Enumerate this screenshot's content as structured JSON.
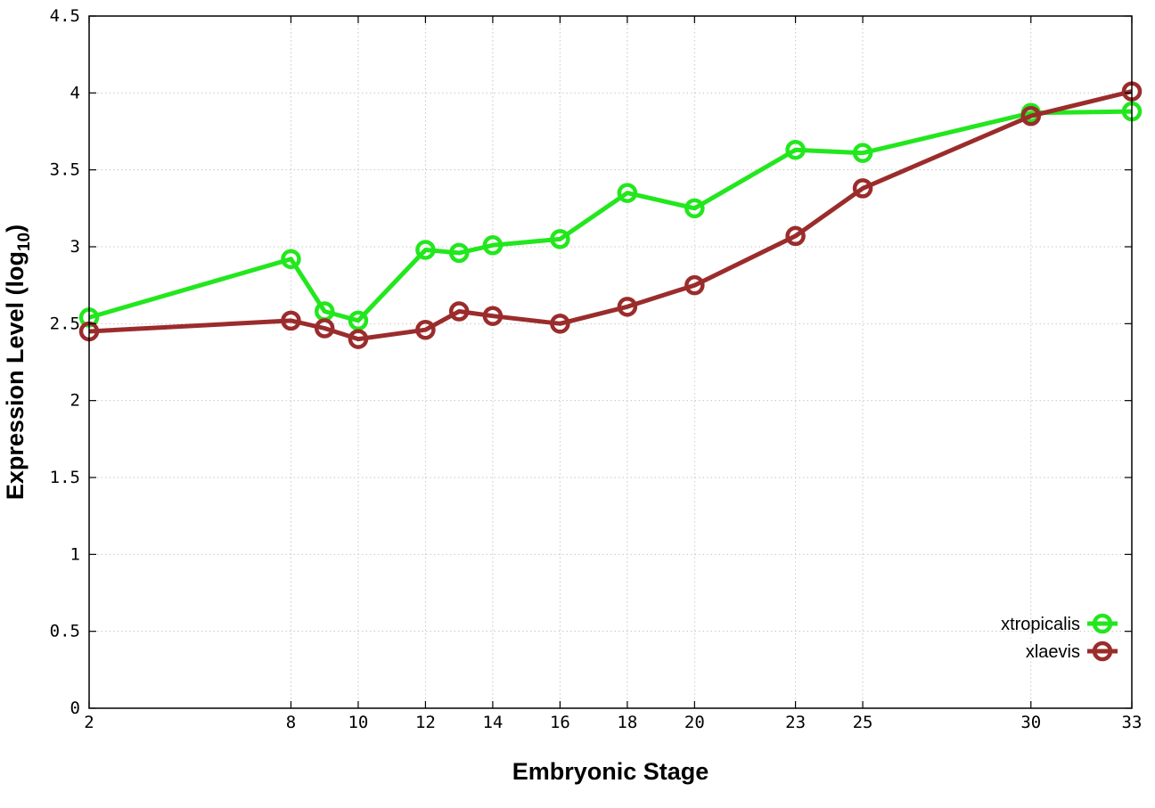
{
  "chart_data": {
    "type": "line",
    "title": "",
    "xlabel": "Embryonic Stage",
    "ylabel_main": "Expression Level (log",
    "ylabel_sub": "10",
    "ylabel_close": ")",
    "x": [
      2,
      8,
      9,
      10,
      12,
      13,
      14,
      16,
      18,
      20,
      23,
      25,
      30,
      33
    ],
    "x_ticks": [
      2,
      8,
      10,
      12,
      14,
      16,
      18,
      20,
      23,
      25,
      30,
      33
    ],
    "x_tick_labels": [
      "2",
      "8",
      "10",
      "12",
      "14",
      "16",
      "18",
      "20",
      "23",
      "25",
      "30",
      "33"
    ],
    "xlim": [
      2,
      33
    ],
    "ylim": [
      0,
      4.5
    ],
    "y_ticks": [
      0,
      0.5,
      1,
      1.5,
      2,
      2.5,
      3,
      3.5,
      4,
      4.5
    ],
    "y_tick_labels": [
      "0",
      "0.5",
      "1",
      "1.5",
      "2",
      "2.5",
      "3",
      "3.5",
      "4",
      "4.5"
    ],
    "grid": true,
    "legend_position": "bottom-right",
    "series": [
      {
        "name": "xtropicalis",
        "color": "#22e71d",
        "values": [
          2.54,
          2.92,
          2.58,
          2.52,
          2.98,
          2.96,
          3.01,
          3.05,
          3.35,
          3.25,
          3.63,
          3.61,
          3.87,
          3.88
        ]
      },
      {
        "name": "xlaevis",
        "color": "#9b2c2c",
        "values": [
          2.45,
          2.52,
          2.47,
          2.4,
          2.46,
          2.58,
          2.55,
          2.5,
          2.61,
          2.75,
          3.07,
          3.38,
          3.85,
          4.01
        ]
      }
    ]
  }
}
